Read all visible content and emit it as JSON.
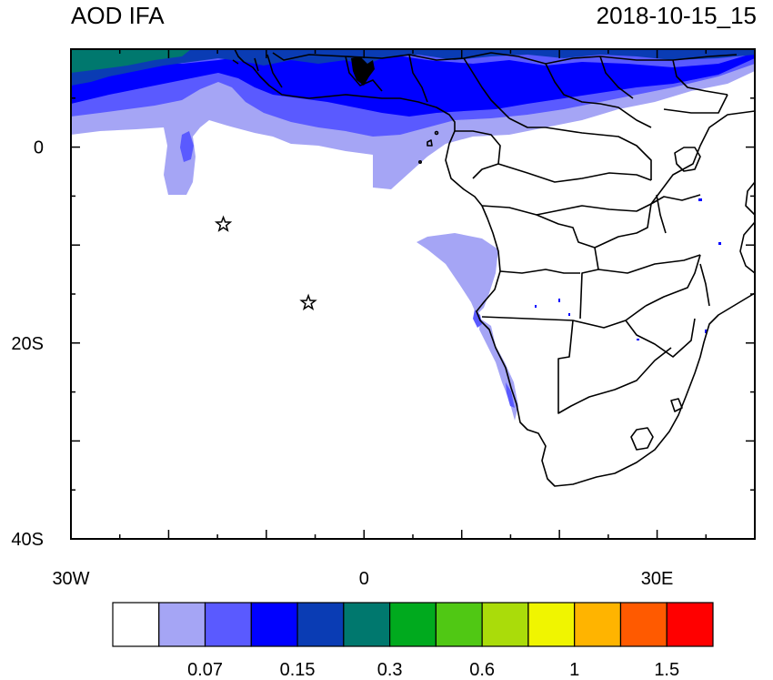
{
  "header": {
    "title": "AOD IFA",
    "timestamp": "2018-10-15_15"
  },
  "axes": {
    "x_ticks": [
      {
        "label": "30W",
        "lon": -30
      },
      {
        "label": "0",
        "lon": 0
      },
      {
        "label": "30E",
        "lon": 30
      }
    ],
    "y_ticks": [
      {
        "label": "0",
        "lat": 0
      },
      {
        "label": "20S",
        "lat": -20
      },
      {
        "label": "40S",
        "lat": -40
      }
    ],
    "lon_range": [
      -30,
      40
    ],
    "lat_range": [
      -40,
      10
    ]
  },
  "markers": [
    {
      "name": "star-marker-1",
      "lon": -14.4,
      "lat": -7.9
    },
    {
      "name": "star-marker-2",
      "lon": -5.7,
      "lat": -15.9
    }
  ],
  "colorbar": {
    "colors": [
      "#ffffff",
      "#a5a5f5",
      "#5a5aff",
      "#0000ff",
      "#0a3cb4",
      "#00786e",
      "#00aa1e",
      "#50c814",
      "#aadc0a",
      "#f0f500",
      "#ffb400",
      "#ff5a00",
      "#ff0000"
    ],
    "labels": [
      {
        "text": "0.07",
        "boundary": 2
      },
      {
        "text": "0.15",
        "boundary": 4
      },
      {
        "text": "0.3",
        "boundary": 6
      },
      {
        "text": "0.6",
        "boundary": 8
      },
      {
        "text": "1",
        "boundary": 10
      },
      {
        "text": "1.5",
        "boundary": 12
      }
    ]
  },
  "colors": {
    "coast": "#000000",
    "level1": "#a5a5f5",
    "level2": "#5a5aff",
    "level3": "#0000ff",
    "level4": "#0a3cb4",
    "level5": "#00786e"
  }
}
